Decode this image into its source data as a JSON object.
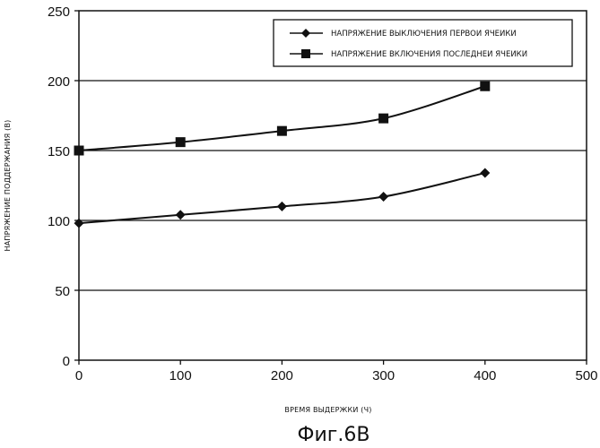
{
  "chart_data": {
    "type": "line",
    "title": "",
    "caption": "Фиг.6В",
    "xlabel": "ВРЕМЯ ВЫДЕРЖКИ (Ч)",
    "ylabel": "НАПРЯЖЕНИЕ ПОДДЕРЖАНИЯ (В)",
    "xlim": [
      0,
      500
    ],
    "ylim": [
      0,
      250
    ],
    "xticks": [
      0,
      100,
      200,
      300,
      400,
      500
    ],
    "yticks": [
      0,
      50,
      100,
      150,
      200,
      250
    ],
    "grid": "horizontal",
    "legend_position": "top-right",
    "series": [
      {
        "name": "НАПРЯЖЕНИЕ ВЫКЛЮЧЕНИЯ ПЕРВОИ ЯЧЕИКИ",
        "marker": "diamond",
        "x": [
          0,
          100,
          200,
          300,
          400
        ],
        "y": [
          98,
          104,
          110,
          117,
          134
        ]
      },
      {
        "name": "НАПРЯЖЕНИЕ ВКЛЮЧЕНИЯ ПОСЛЕДНЕИ ЯЧЕИКИ",
        "marker": "square",
        "x": [
          0,
          100,
          200,
          300,
          400
        ],
        "y": [
          150,
          156,
          164,
          173,
          196
        ]
      }
    ]
  }
}
